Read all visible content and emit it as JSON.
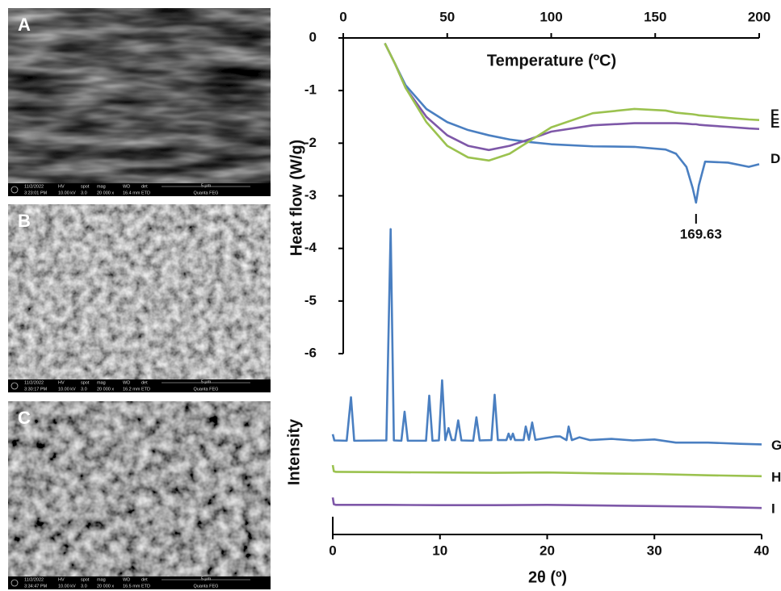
{
  "images": {
    "info_headers": [
      "HV",
      "spot",
      "mag",
      "WD",
      "det"
    ],
    "panels": [
      {
        "label": "A",
        "date": "11/2/2022",
        "time": "3:23:01 PM",
        "hv": "10.00 kV",
        "spot": "3.0",
        "mag": "20 000 x",
        "wd": "16.4 mm",
        "det": "ETD",
        "scale": "5 μm",
        "instrument": "Quanta FEG"
      },
      {
        "label": "B",
        "date": "11/2/2022",
        "time": "3:30:17 PM",
        "hv": "10.00 kV",
        "spot": "3.0",
        "mag": "20 000 x",
        "wd": "16.2 mm",
        "det": "ETD",
        "scale": "5 μm",
        "instrument": "Quanta FEG"
      },
      {
        "label": "C",
        "date": "11/2/2022",
        "time": "3:34:47 PM",
        "hv": "10.00 kV",
        "spot": "3.0",
        "mag": "20 000 x",
        "wd": "16.5 mm",
        "det": "ETD",
        "scale": "5 μm",
        "instrument": "Quanta FEG"
      }
    ]
  },
  "chart_data": [
    {
      "type": "line",
      "x_label": "Temperature (ºC)",
      "y_label": "Heat flow (W/g)",
      "x": [
        20,
        25,
        30,
        40,
        50,
        60,
        70,
        80,
        90,
        100,
        120,
        140,
        155,
        160,
        165,
        168,
        169.63,
        171,
        174,
        185,
        195,
        200
      ],
      "series": [
        {
          "name": "D",
          "color": "#4a7fc1",
          "values": [
            -0.1,
            -0.5,
            -0.9,
            -1.35,
            -1.6,
            -1.75,
            -1.85,
            -1.93,
            -1.98,
            -2.02,
            -2.06,
            -2.07,
            -2.12,
            -2.2,
            -2.45,
            -2.85,
            -3.13,
            -2.8,
            -2.35,
            -2.37,
            -2.45,
            -2.4
          ]
        },
        {
          "name": "E",
          "color": "#7e58a8",
          "values": [
            -0.1,
            -0.5,
            -0.95,
            -1.5,
            -1.85,
            -2.05,
            -2.13,
            -2.05,
            -1.92,
            -1.78,
            -1.66,
            -1.62,
            -1.62,
            -1.62,
            -1.63,
            -1.64,
            -1.64,
            -1.65,
            -1.66,
            -1.69,
            -1.72,
            -1.73
          ]
        },
        {
          "name": "F",
          "color": "#9bc24f",
          "values": [
            -0.1,
            -0.5,
            -0.95,
            -1.6,
            -2.05,
            -2.27,
            -2.33,
            -2.2,
            -1.95,
            -1.7,
            -1.43,
            -1.35,
            -1.38,
            -1.42,
            -1.44,
            -1.45,
            -1.46,
            -1.47,
            -1.48,
            -1.52,
            -1.55,
            -1.56
          ]
        }
      ],
      "annotation": "169.63",
      "xlim": [
        0,
        200
      ],
      "xticks": [
        0,
        50,
        100,
        150,
        200
      ],
      "ylim": [
        -6,
        0
      ],
      "yticks": [
        0,
        -1,
        -2,
        -3,
        -4,
        -5,
        -6
      ]
    },
    {
      "type": "line",
      "x_label": "2θ (º)",
      "y_label": "Intensity",
      "series": [
        {
          "name": "G",
          "color": "#4a7fc1",
          "x": [
            0,
            0.15,
            1.3,
            1.7,
            2.0,
            5.0,
            5.4,
            5.7,
            6.4,
            6.7,
            7.0,
            8.7,
            9.0,
            9.3,
            9.9,
            10.2,
            10.5,
            10.8,
            11.1,
            11.4,
            11.7,
            12.0,
            13.1,
            13.4,
            13.7,
            14.8,
            15.1,
            15.4,
            16.2,
            16.4,
            16.6,
            16.8,
            17.0,
            17.8,
            18.0,
            18.3,
            18.6,
            18.9,
            20.8,
            21.2,
            21.8,
            22.0,
            22.3,
            23.0,
            24.0,
            26.0,
            28.0,
            30.0,
            32.0,
            35.0,
            38.0,
            40.0
          ],
          "values": [
            32.5,
            30.5,
            30.4,
            44.5,
            30.4,
            30.5,
            99,
            30.5,
            30.4,
            39.8,
            30.4,
            30.4,
            45,
            30.4,
            30.5,
            50,
            30.6,
            34.5,
            30.6,
            30.6,
            37,
            30.5,
            30.4,
            38,
            30.5,
            30.6,
            45.3,
            30.6,
            30.6,
            32.7,
            30.8,
            32.7,
            30.6,
            30.6,
            35,
            30.7,
            36.3,
            30.7,
            31.8,
            31.8,
            30.6,
            35,
            30.6,
            31.5,
            30.6,
            31.0,
            30.5,
            30.8,
            29.8,
            29.8,
            29.4,
            29.2
          ]
        },
        {
          "name": "H",
          "color": "#9bc24f",
          "x": [
            0,
            0.1,
            0.3,
            5,
            10,
            15,
            20,
            25,
            30,
            35,
            40
          ],
          "values": [
            22.5,
            20.5,
            20.3,
            20.2,
            20.1,
            20.0,
            20.1,
            19.8,
            19.6,
            19.2,
            18.9
          ]
        },
        {
          "name": "I",
          "color": "#7e58a8",
          "x": [
            0,
            0.1,
            0.3,
            5,
            10,
            15,
            20,
            25,
            30,
            35,
            40
          ],
          "values": [
            12,
            9.8,
            9.6,
            9.6,
            9.5,
            9.5,
            9.6,
            9.4,
            9.2,
            9.0,
            8.6
          ]
        }
      ],
      "xlim": [
        0,
        40
      ],
      "xticks": [
        0,
        10,
        20,
        30,
        40
      ],
      "ylim": [
        0,
        100
      ]
    }
  ]
}
